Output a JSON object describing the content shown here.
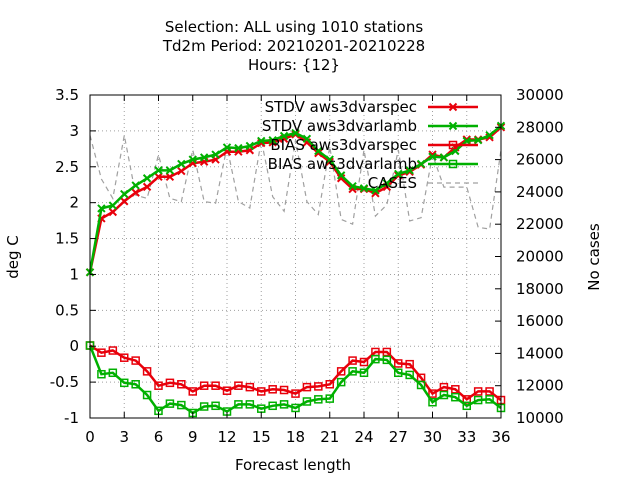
{
  "chart_data": {
    "type": "line",
    "title_lines": [
      "Selection: ALL using  1010 stations",
      "Td2m   Period: 20210201-20210228",
      "Hours: {12}"
    ],
    "xlabel": "Forecast length",
    "ylabel": "deg C",
    "y2label": "No cases",
    "xlim": [
      0,
      36
    ],
    "ylim": [
      -1,
      3.5
    ],
    "y2lim": [
      10000,
      30000
    ],
    "xticks": [
      "0",
      "3",
      "6",
      "9",
      "12",
      "15",
      "18",
      "21",
      "24",
      "27",
      "30",
      "33",
      "36"
    ],
    "yticks": [
      "-1",
      "-0.5",
      "0",
      "0.5",
      "1",
      "1.5",
      "2",
      "2.5",
      "3",
      "3.5"
    ],
    "y2ticks": [
      "10000",
      "12000",
      "14000",
      "16000",
      "18000",
      "20000",
      "22000",
      "24000",
      "26000",
      "28000",
      "30000"
    ],
    "grid": true,
    "legend_position": "top-right",
    "x": [
      0,
      1,
      2,
      3,
      4,
      5,
      6,
      7,
      8,
      9,
      10,
      11,
      12,
      13,
      14,
      15,
      16,
      17,
      18,
      19,
      20,
      21,
      22,
      23,
      24,
      25,
      26,
      27,
      28,
      29,
      30,
      31,
      32,
      33,
      34,
      35,
      36
    ],
    "series": [
      {
        "name": "STDV aws3dvarspec",
        "axis": "y",
        "color": "#e8000b",
        "marker": "x",
        "values": [
          1.03,
          1.78,
          1.87,
          2.02,
          2.14,
          2.22,
          2.36,
          2.36,
          2.44,
          2.55,
          2.57,
          2.6,
          2.71,
          2.71,
          2.73,
          2.83,
          2.84,
          2.89,
          2.95,
          2.84,
          2.69,
          2.57,
          2.34,
          2.19,
          2.19,
          2.13,
          2.22,
          2.38,
          2.43,
          2.53,
          2.67,
          2.63,
          2.77,
          2.88,
          2.88,
          2.91,
          3.05
        ]
      },
      {
        "name": "STDV aws3dvarlamb",
        "axis": "y",
        "color": "#00b000",
        "marker": "x",
        "values": [
          1.03,
          1.92,
          1.96,
          2.12,
          2.24,
          2.34,
          2.45,
          2.45,
          2.54,
          2.6,
          2.63,
          2.67,
          2.77,
          2.76,
          2.79,
          2.86,
          2.87,
          2.93,
          2.97,
          2.89,
          2.72,
          2.6,
          2.38,
          2.23,
          2.2,
          2.17,
          2.27,
          2.4,
          2.45,
          2.54,
          2.64,
          2.63,
          2.72,
          2.86,
          2.87,
          2.94,
          3.07
        ]
      },
      {
        "name": "BIAS aws3dvarspec",
        "axis": "y",
        "color": "#e8000b",
        "marker": "square",
        "values": [
          0.01,
          -0.09,
          -0.06,
          -0.16,
          -0.2,
          -0.35,
          -0.55,
          -0.51,
          -0.53,
          -0.63,
          -0.55,
          -0.55,
          -0.62,
          -0.55,
          -0.57,
          -0.63,
          -0.6,
          -0.61,
          -0.66,
          -0.57,
          -0.56,
          -0.53,
          -0.35,
          -0.2,
          -0.22,
          -0.08,
          -0.08,
          -0.24,
          -0.25,
          -0.44,
          -0.66,
          -0.57,
          -0.6,
          -0.74,
          -0.63,
          -0.63,
          -0.75
        ]
      },
      {
        "name": "BIAS aws3dvarlamb",
        "axis": "y",
        "color": "#00b000",
        "marker": "square",
        "values": [
          0.01,
          -0.39,
          -0.37,
          -0.51,
          -0.53,
          -0.68,
          -0.9,
          -0.8,
          -0.82,
          -0.93,
          -0.84,
          -0.83,
          -0.91,
          -0.81,
          -0.81,
          -0.87,
          -0.83,
          -0.81,
          -0.86,
          -0.77,
          -0.74,
          -0.73,
          -0.5,
          -0.35,
          -0.37,
          -0.18,
          -0.19,
          -0.37,
          -0.4,
          -0.54,
          -0.78,
          -0.68,
          -0.71,
          -0.83,
          -0.75,
          -0.74,
          -0.86
        ]
      },
      {
        "name": "CASES",
        "axis": "y2",
        "color": "#a0a0a0",
        "style": "dashed",
        "values": [
          27500,
          24800,
          23600,
          27500,
          23800,
          23600,
          26300,
          23600,
          23400,
          26600,
          23400,
          23300,
          26800,
          23400,
          23000,
          27200,
          23700,
          22800,
          27200,
          23400,
          22600,
          26800,
          22300,
          22000,
          26600,
          22500,
          23200,
          26600,
          22200,
          22400,
          26300,
          24300,
          24300,
          24300,
          21800,
          21700,
          26600
        ]
      }
    ]
  }
}
